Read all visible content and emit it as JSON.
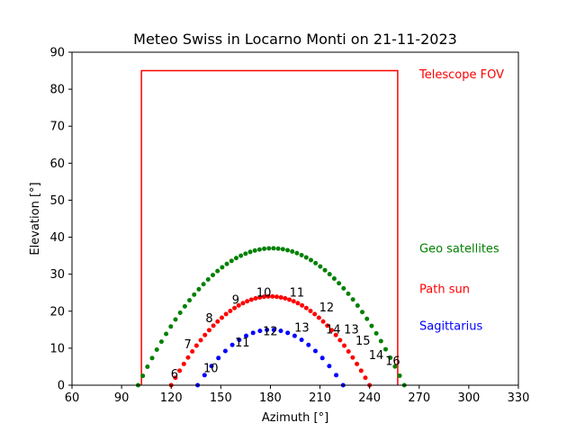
{
  "chart_data": {
    "type": "scatter",
    "title": "Meteo Swiss in Locarno Monti on 21-11-2023",
    "xlabel": "Azimuth [°]",
    "ylabel": "Elevation [°]",
    "xlim": [
      60,
      330
    ],
    "ylim": [
      0,
      90
    ],
    "xticks": [
      "60",
      "90",
      "120",
      "150",
      "180",
      "210",
      "240",
      "270",
      "300",
      "330"
    ],
    "yticks": [
      "0",
      "10",
      "20",
      "30",
      "40",
      "50",
      "60",
      "70",
      "80",
      "90"
    ],
    "grid": false,
    "fov": {
      "name": "Telescope FOV",
      "color": "#ff0000",
      "az_min": 102,
      "az_max": 257,
      "el_min": 0,
      "el_max": 85
    },
    "series": [
      {
        "name": "Geo satellites",
        "color": "#008000",
        "curve": {
          "az_start": 100,
          "az_end": 261,
          "az_peak": 181,
          "el_peak": 37,
          "count": 58
        }
      },
      {
        "name": "Path sun",
        "color": "#ff0000",
        "curve": {
          "az_start": 120,
          "az_end": 240,
          "az_peak": 180,
          "el_peak": 24,
          "count": 48
        }
      },
      {
        "name": "Sagittarius",
        "color": "#0000ff",
        "curve": {
          "az_start": 136,
          "az_end": 224,
          "az_peak": 180,
          "el_peak": 15,
          "count": 22
        }
      }
    ],
    "annotations": [
      {
        "text": "6",
        "az": 122,
        "el": 2,
        "color": "#000000"
      },
      {
        "text": "7",
        "az": 130,
        "el": 10,
        "color": "#000000"
      },
      {
        "text": "8",
        "az": 143,
        "el": 17,
        "color": "#000000"
      },
      {
        "text": "9",
        "az": 159,
        "el": 22,
        "color": "#000000"
      },
      {
        "text": "10",
        "az": 176,
        "el": 24,
        "color": "#000000"
      },
      {
        "text": "11",
        "az": 196,
        "el": 24,
        "color": "#000000"
      },
      {
        "text": "12",
        "az": 214,
        "el": 20,
        "color": "#000000"
      },
      {
        "text": "13",
        "az": 229,
        "el": 14,
        "color": "#000000"
      },
      {
        "text": "14",
        "az": 244,
        "el": 7,
        "color": "#000000"
      },
      {
        "text": "10",
        "az": 144,
        "el": 3.5,
        "color": "#000000"
      },
      {
        "text": "11",
        "az": 163,
        "el": 10.5,
        "color": "#000000"
      },
      {
        "text": "12",
        "az": 180,
        "el": 13.5,
        "color": "#000000"
      },
      {
        "text": "13",
        "az": 199,
        "el": 14.5,
        "color": "#000000"
      },
      {
        "text": "14",
        "az": 218,
        "el": 14,
        "color": "#000000"
      },
      {
        "text": "15",
        "az": 236,
        "el": 11,
        "color": "#000000"
      },
      {
        "text": "16",
        "az": 254,
        "el": 5.5,
        "color": "#000000"
      }
    ],
    "legend": [
      {
        "text": "Telescope FOV",
        "color": "#ff0000",
        "el": 84
      },
      {
        "text": "Geo satellites",
        "color": "#008000",
        "el": 37
      },
      {
        "text": "Path sun",
        "color": "#ff0000",
        "el": 26
      },
      {
        "text": "Sagittarius",
        "color": "#0000ff",
        "el": 16
      }
    ]
  }
}
